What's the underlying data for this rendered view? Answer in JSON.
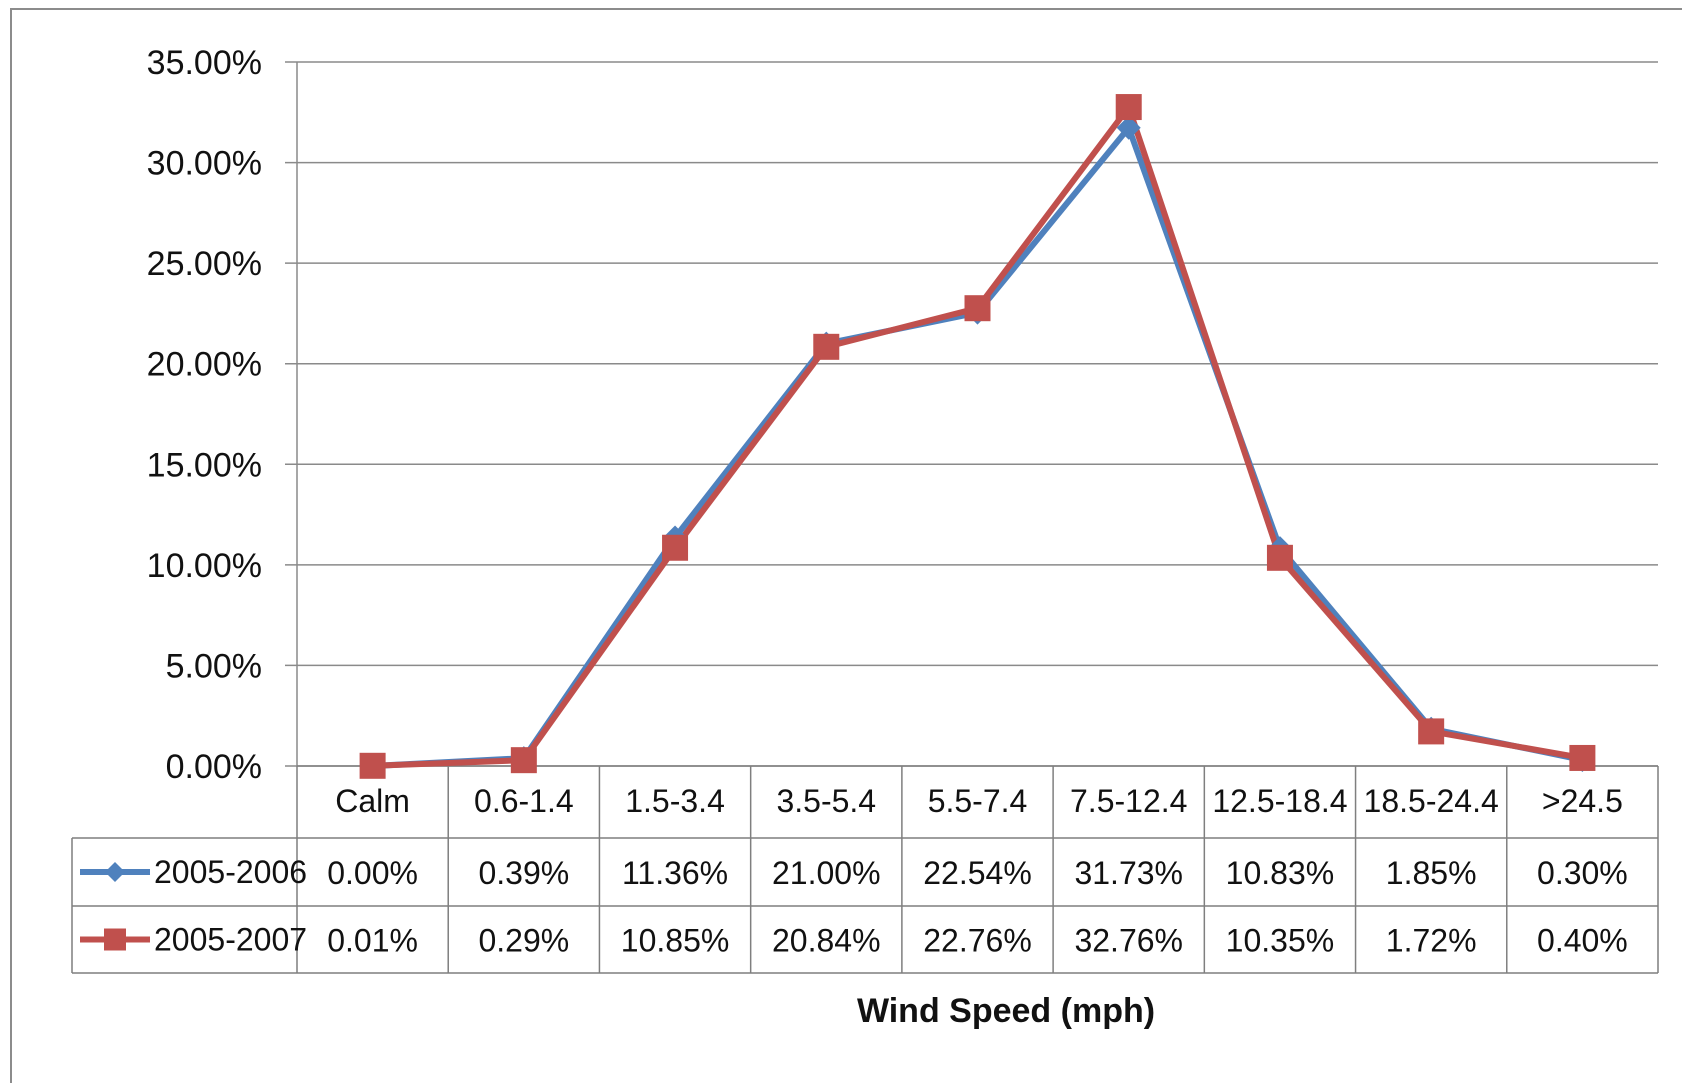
{
  "chart_data": {
    "type": "line",
    "xlabel": "Wind Speed (mph)",
    "categories": [
      "Calm",
      "0.6-1.4",
      "1.5-3.4",
      "3.5-5.4",
      "5.5-7.4",
      "7.5-12.4",
      "12.5-18.4",
      "18.5-24.4",
      ">24.5"
    ],
    "ylim": [
      0,
      35
    ],
    "yticks": [
      0,
      5,
      10,
      15,
      20,
      25,
      30,
      35
    ],
    "ytick_labels": [
      "0.00%",
      "5.00%",
      "10.00%",
      "15.00%",
      "20.00%",
      "25.00%",
      "30.00%",
      "35.00%"
    ],
    "grid": true,
    "legend": "data-table",
    "series": [
      {
        "name": "2005-2006",
        "color": "#4f81bd",
        "marker": "diamond",
        "values": [
          0.0,
          0.39,
          11.36,
          21.0,
          22.54,
          31.73,
          10.83,
          1.85,
          0.3
        ],
        "labels": [
          "0.00%",
          "0.39%",
          "11.36%",
          "21.00%",
          "22.54%",
          "31.73%",
          "10.83%",
          "1.85%",
          "0.30%"
        ]
      },
      {
        "name": "2005-2007",
        "color": "#c0504d",
        "marker": "square",
        "values": [
          0.01,
          0.29,
          10.85,
          20.84,
          22.76,
          32.76,
          10.35,
          1.72,
          0.4
        ],
        "labels": [
          "0.01%",
          "0.29%",
          "10.85%",
          "20.84%",
          "22.76%",
          "32.76%",
          "10.35%",
          "1.72%",
          "0.40%"
        ]
      }
    ]
  }
}
